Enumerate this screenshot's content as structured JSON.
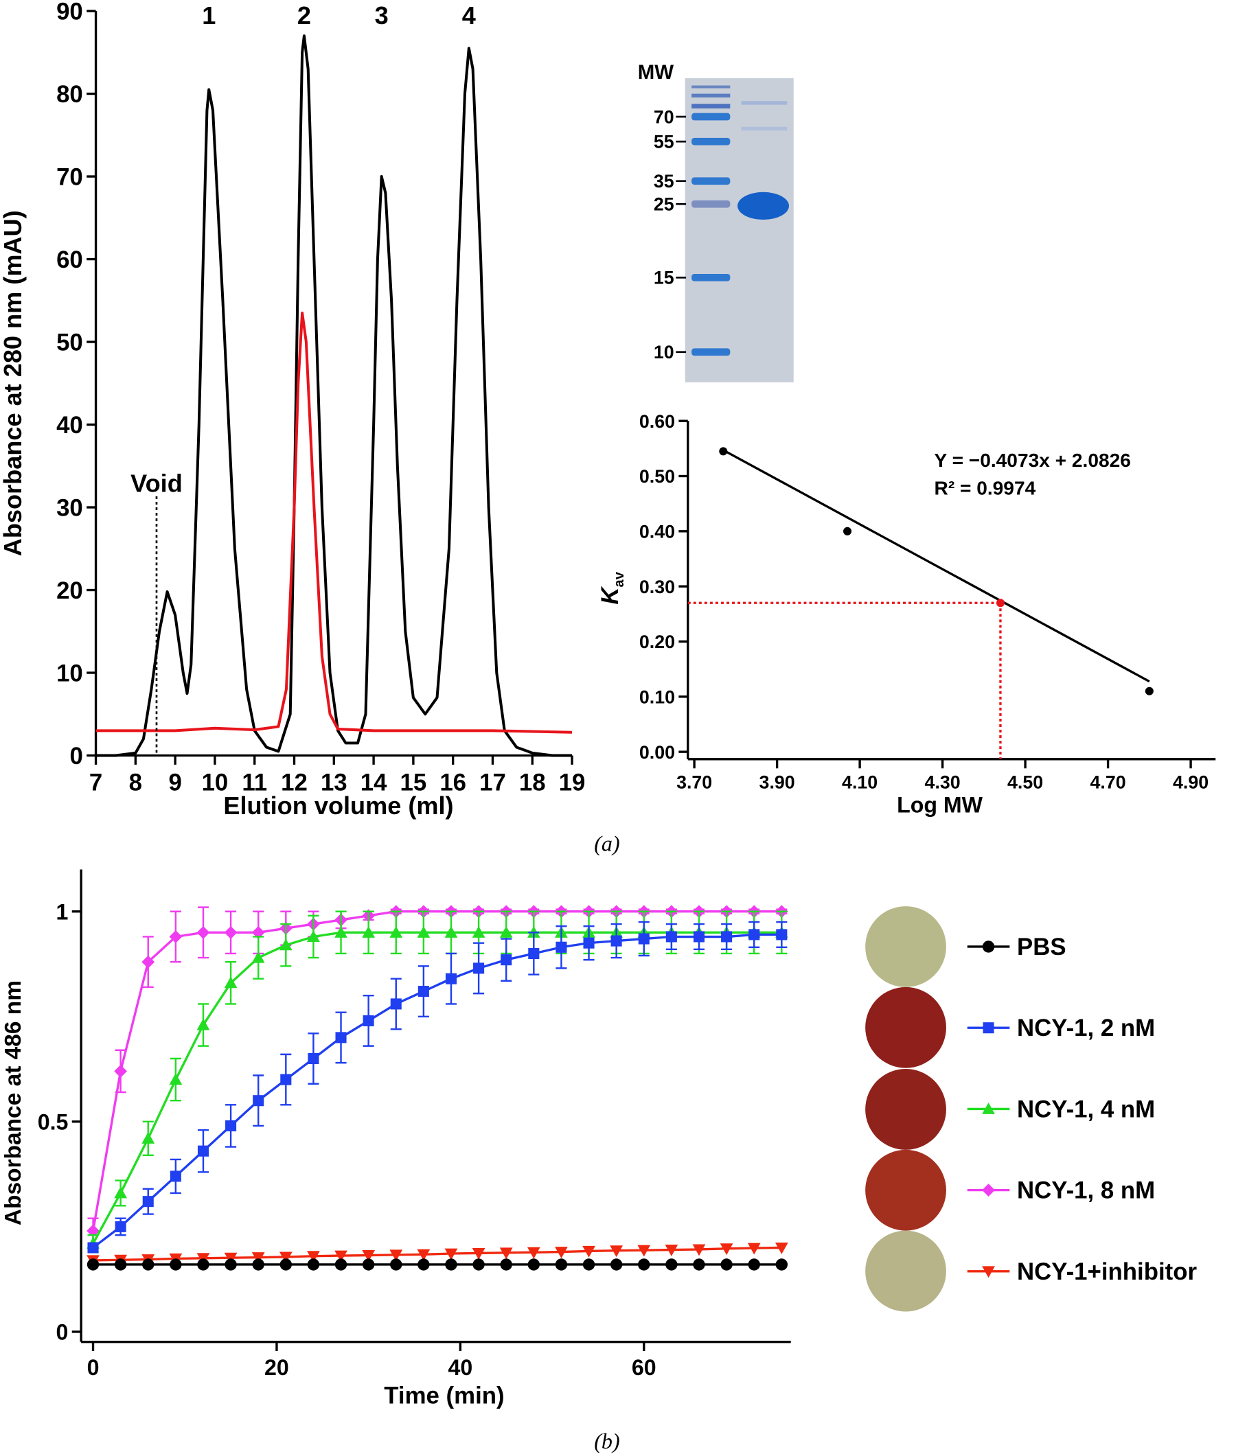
{
  "chart_data": [
    {
      "type": "line",
      "x_label": "Elution volume (ml)",
      "y_label": "Absorbance at 280 nm (mAU)",
      "xlim": [
        7,
        19
      ],
      "ylim": [
        0,
        90
      ],
      "xticks": [
        7,
        8,
        9,
        10,
        11,
        12,
        13,
        14,
        15,
        16,
        17,
        18,
        19
      ],
      "yticks": [
        0,
        10,
        20,
        30,
        40,
        50,
        60,
        70,
        80,
        90
      ],
      "annotations": [
        {
          "text": "Void",
          "x": 8.53
        },
        {
          "text": "1",
          "x": 9.85
        },
        {
          "text": "2",
          "x": 12.25
        },
        {
          "text": "3",
          "x": 14.2
        },
        {
          "text": "4",
          "x": 16.4
        }
      ],
      "series": [
        {
          "color": "#000000",
          "x": [
            7,
            7.5,
            8,
            8.2,
            8.4,
            8.6,
            8.8,
            9.0,
            9.2,
            9.3,
            9.4,
            9.6,
            9.8,
            9.85,
            9.95,
            10.2,
            10.5,
            10.8,
            11.0,
            11.3,
            11.6,
            11.9,
            12.0,
            12.1,
            12.2,
            12.25,
            12.35,
            12.5,
            12.7,
            12.9,
            13.1,
            13.3,
            13.6,
            13.8,
            14.0,
            14.1,
            14.2,
            14.3,
            14.45,
            14.6,
            14.8,
            15.0,
            15.3,
            15.6,
            15.9,
            16.1,
            16.3,
            16.4,
            16.5,
            16.7,
            16.9,
            17.1,
            17.3,
            17.6,
            18,
            18.5,
            19
          ],
          "values": [
            0,
            0,
            0.3,
            2,
            8,
            15,
            19.8,
            17,
            10,
            7.5,
            11,
            40,
            78,
            80.5,
            78,
            55,
            25,
            8,
            3,
            1,
            0.5,
            5,
            30,
            60,
            85,
            87,
            83,
            60,
            30,
            10,
            3,
            1.5,
            1.5,
            5,
            40,
            60,
            70,
            68,
            55,
            35,
            15,
            7,
            5,
            7,
            25,
            55,
            80,
            85.5,
            83,
            60,
            30,
            10,
            3,
            1,
            0.3,
            0,
            0
          ]
        },
        {
          "color": "#e8141b",
          "x": [
            7,
            9,
            10,
            11,
            11.6,
            11.8,
            12.0,
            12.1,
            12.2,
            12.3,
            12.5,
            12.7,
            12.9,
            13.1,
            14,
            17,
            19
          ],
          "values": [
            3,
            3,
            3.3,
            3.1,
            3.5,
            8,
            30,
            45,
            53.5,
            50,
            30,
            12,
            5,
            3.2,
            3,
            3,
            2.8
          ]
        }
      ]
    },
    {
      "type": "scatter",
      "x_label": "Log MW",
      "y_label": "K",
      "y_label_sub": "av",
      "xlim": [
        3.7,
        4.96
      ],
      "ylim": [
        0,
        0.6
      ],
      "xticks": [
        {
          "value": 3.7,
          "label": "3.70"
        },
        {
          "value": 3.9,
          "label": "3.90"
        },
        {
          "value": 4.1,
          "label": "4.10"
        },
        {
          "value": 4.3,
          "label": "4.30"
        },
        {
          "value": 4.5,
          "label": "4.50"
        },
        {
          "value": 4.7,
          "label": "4.70"
        },
        {
          "value": 4.9,
          "label": "4.90"
        }
      ],
      "yticks": [
        {
          "value": 0,
          "label": "0.00"
        },
        {
          "value": 0.1,
          "label": "0.10"
        },
        {
          "value": 0.2,
          "label": "0.20"
        },
        {
          "value": 0.3,
          "label": "0.30"
        },
        {
          "value": 0.4,
          "label": "0.40"
        },
        {
          "value": 0.5,
          "label": "0.50"
        },
        {
          "value": 0.6,
          "label": "0.60"
        }
      ],
      "annotations": [
        "Y = −0.4073x + 2.0826",
        "R² = 0.9974"
      ],
      "fit": {
        "slope": -0.4073,
        "intercept": 2.0826
      },
      "x": [
        3.77,
        4.07,
        4.44,
        4.8
      ],
      "values": [
        0.545,
        0.4,
        0.27,
        0.11
      ],
      "color": "#000000",
      "highlight_index": 2,
      "highlight_color": "#e8141b"
    },
    {
      "type": "line_error",
      "x_label": "Time (min)",
      "y_label": "Absorbance at 486 nm",
      "xlim": [
        -1,
        76
      ],
      "ylim": [
        0,
        1.1
      ],
      "xticks": [
        0,
        20,
        40,
        60
      ],
      "yticks": [
        0,
        0.5,
        1
      ],
      "x": [
        0,
        3,
        6,
        9,
        12,
        15,
        18,
        21,
        24,
        27,
        30,
        33,
        36,
        39,
        42,
        45,
        48,
        51,
        54,
        57,
        60,
        63,
        66,
        69,
        72,
        75
      ],
      "series": [
        {
          "name": "NCY-1, 8 nM",
          "color": "#f03cf0",
          "marker": "diamond",
          "values": [
            0.24,
            0.62,
            0.88,
            0.94,
            0.95,
            0.95,
            0.95,
            0.96,
            0.97,
            0.98,
            0.99,
            1,
            1,
            1,
            1,
            1,
            1,
            1,
            1,
            1,
            1,
            1,
            1,
            1,
            1,
            1
          ],
          "errors": [
            0.03,
            0.05,
            0.06,
            0.06,
            0.06,
            0.05,
            0.05,
            0.04,
            0.03,
            0.02,
            0.01,
            0.005,
            0.005,
            0.005,
            0.005,
            0.005,
            0.005,
            0.005,
            0.005,
            0.005,
            0.005,
            0.005,
            0.005,
            0.005,
            0.005,
            0.005
          ]
        },
        {
          "name": "NCY-1, 4 nM",
          "color": "#22dd22",
          "marker": "triangle",
          "values": [
            0.21,
            0.33,
            0.46,
            0.6,
            0.73,
            0.83,
            0.89,
            0.92,
            0.94,
            0.95,
            0.95,
            0.95,
            0.95,
            0.95,
            0.95,
            0.95,
            0.95,
            0.95,
            0.95,
            0.95,
            0.95,
            0.95,
            0.95,
            0.95,
            0.95,
            0.95
          ],
          "errors": [
            0.02,
            0.03,
            0.04,
            0.05,
            0.05,
            0.05,
            0.05,
            0.05,
            0.05,
            0.05,
            0.05,
            0.05,
            0.05,
            0.05,
            0.05,
            0.05,
            0.05,
            0.05,
            0.05,
            0.05,
            0.05,
            0.05,
            0.05,
            0.05,
            0.05,
            0.05
          ]
        },
        {
          "name": "NCY-1, 2 nM",
          "color": "#1f3ff0",
          "marker": "square",
          "values": [
            0.2,
            0.25,
            0.31,
            0.37,
            0.43,
            0.49,
            0.55,
            0.6,
            0.65,
            0.7,
            0.74,
            0.78,
            0.81,
            0.84,
            0.865,
            0.885,
            0.9,
            0.915,
            0.925,
            0.93,
            0.935,
            0.94,
            0.94,
            0.94,
            0.945,
            0.945
          ],
          "errors": [
            0.01,
            0.02,
            0.03,
            0.04,
            0.05,
            0.05,
            0.06,
            0.06,
            0.06,
            0.06,
            0.06,
            0.06,
            0.06,
            0.06,
            0.06,
            0.05,
            0.05,
            0.05,
            0.04,
            0.04,
            0.04,
            0.03,
            0.03,
            0.03,
            0.03,
            0.03
          ]
        },
        {
          "name": "NCY-1+inhibitor",
          "color": "#f0280f",
          "marker": "triangle-down",
          "values": [
            0.17,
            0.171,
            0.172,
            0.174,
            0.175,
            0.176,
            0.177,
            0.178,
            0.18,
            0.181,
            0.182,
            0.183,
            0.184,
            0.186,
            0.187,
            0.188,
            0.189,
            0.19,
            0.192,
            0.193,
            0.194,
            0.195,
            0.196,
            0.198,
            0.199,
            0.2
          ]
        },
        {
          "name": "PBS",
          "color": "#000000",
          "marker": "circle",
          "values": [
            0.16,
            0.16,
            0.16,
            0.16,
            0.16,
            0.16,
            0.16,
            0.16,
            0.16,
            0.16,
            0.16,
            0.16,
            0.16,
            0.16,
            0.16,
            0.16,
            0.16,
            0.16,
            0.16,
            0.16,
            0.16,
            0.16,
            0.16,
            0.16,
            0.16,
            0.16
          ]
        }
      ],
      "legend_order": [
        4,
        2,
        1,
        0,
        3
      ]
    }
  ],
  "gel": {
    "title": "MW",
    "markers": [
      70,
      55,
      35,
      25,
      15,
      10
    ]
  },
  "captions": [
    "(a)",
    "(b)"
  ]
}
